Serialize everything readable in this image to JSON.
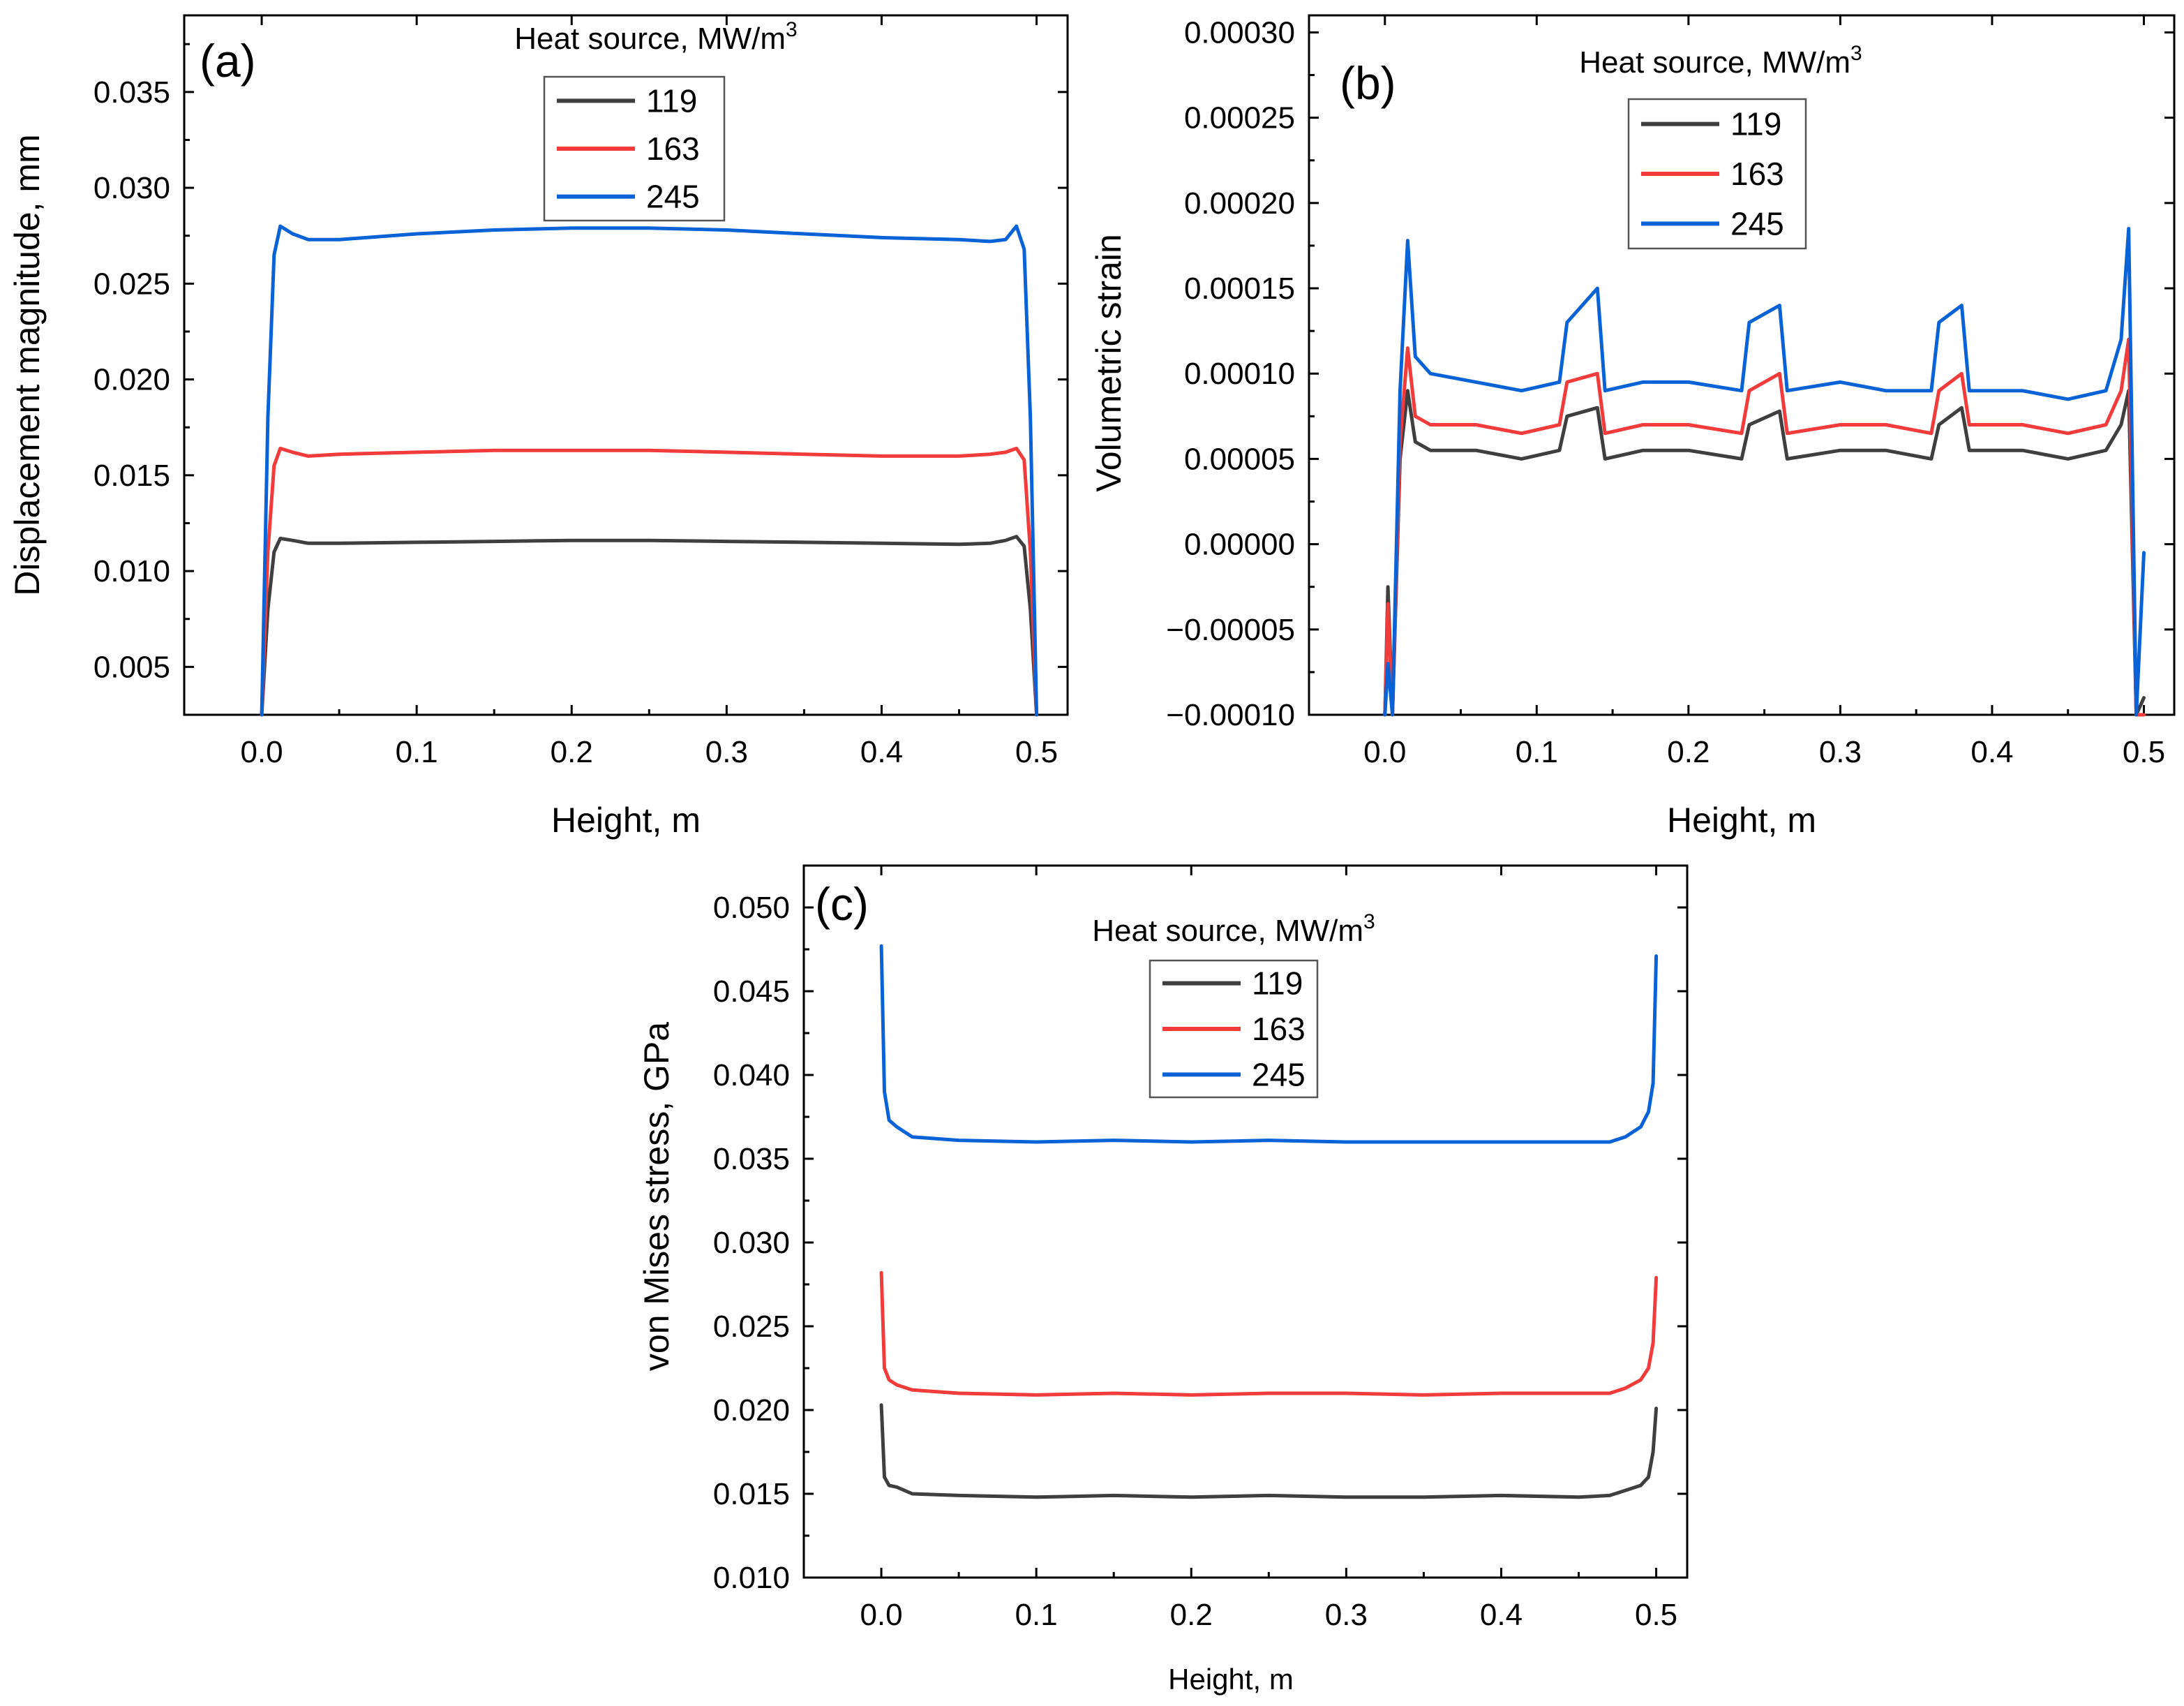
{
  "colors": {
    "s119": "#3f3f3f",
    "s163": "#f23b3b",
    "s245": "#0a63d6"
  },
  "legend": {
    "title": "Heat source, MW/m",
    "title_sup": "3",
    "entries": [
      "119",
      "163",
      "245"
    ]
  },
  "chart_data": [
    {
      "panel": "(a)",
      "type": "line",
      "xlabel": "Height, m",
      "ylabel": "Displacement magnitude, mm",
      "xlim": [
        -0.05,
        0.52
      ],
      "ylim": [
        0.0025,
        0.039
      ],
      "xticks": [
        "0.0",
        "0.1",
        "0.2",
        "0.3",
        "0.4",
        "0.5"
      ],
      "yticks": [
        "0.005",
        "0.010",
        "0.015",
        "0.020",
        "0.025",
        "0.030",
        "0.035"
      ],
      "series": [
        {
          "name": "119",
          "x": [
            0.0,
            0.004,
            0.008,
            0.012,
            0.02,
            0.03,
            0.05,
            0.1,
            0.15,
            0.2,
            0.25,
            0.3,
            0.35,
            0.4,
            0.45,
            0.47,
            0.48,
            0.487,
            0.492,
            0.496,
            0.5
          ],
          "values": [
            0.0025,
            0.008,
            0.011,
            0.0117,
            0.0116,
            0.01145,
            0.01145,
            0.0115,
            0.01155,
            0.0116,
            0.0116,
            0.01155,
            0.0115,
            0.01145,
            0.0114,
            0.01145,
            0.0116,
            0.0118,
            0.0113,
            0.008,
            0.0025
          ]
        },
        {
          "name": "163",
          "x": [
            0.0,
            0.004,
            0.008,
            0.012,
            0.02,
            0.03,
            0.05,
            0.1,
            0.15,
            0.2,
            0.25,
            0.3,
            0.35,
            0.4,
            0.45,
            0.47,
            0.48,
            0.487,
            0.492,
            0.496,
            0.5
          ],
          "values": [
            0.0025,
            0.011,
            0.0155,
            0.0164,
            0.0162,
            0.016,
            0.0161,
            0.0162,
            0.0163,
            0.0163,
            0.0163,
            0.0162,
            0.0161,
            0.016,
            0.016,
            0.0161,
            0.0162,
            0.0164,
            0.0158,
            0.011,
            0.0025
          ]
        },
        {
          "name": "245",
          "x": [
            0.0,
            0.004,
            0.008,
            0.012,
            0.02,
            0.03,
            0.05,
            0.1,
            0.15,
            0.2,
            0.25,
            0.3,
            0.35,
            0.4,
            0.45,
            0.47,
            0.48,
            0.487,
            0.492,
            0.496,
            0.5
          ],
          "values": [
            0.0025,
            0.018,
            0.0265,
            0.028,
            0.0276,
            0.0273,
            0.0273,
            0.0276,
            0.0278,
            0.0279,
            0.0279,
            0.0278,
            0.0276,
            0.0274,
            0.0273,
            0.0272,
            0.0273,
            0.028,
            0.0268,
            0.018,
            0.0025
          ]
        }
      ]
    },
    {
      "panel": "(b)",
      "type": "line",
      "xlabel": "Height, m",
      "ylabel": "Volumetric strain",
      "xlim": [
        -0.05,
        0.52
      ],
      "ylim": [
        -0.0001,
        0.00031
      ],
      "xticks": [
        "0.0",
        "0.1",
        "0.2",
        "0.3",
        "0.4",
        "0.5"
      ],
      "yticks": [
        "−0.00010",
        "−0.00005",
        "0.00000",
        "0.00005",
        "0.00010",
        "0.00015",
        "0.00020",
        "0.00025",
        "0.00030"
      ],
      "series": [
        {
          "name": "119",
          "x": [
            0.0,
            0.002,
            0.005,
            0.01,
            0.015,
            0.02,
            0.03,
            0.06,
            0.09,
            0.115,
            0.12,
            0.14,
            0.145,
            0.17,
            0.2,
            0.235,
            0.24,
            0.26,
            0.265,
            0.3,
            0.33,
            0.36,
            0.365,
            0.38,
            0.385,
            0.42,
            0.45,
            0.475,
            0.485,
            0.49,
            0.495,
            0.5
          ],
          "values": [
            -0.0001,
            -2.5e-05,
            -0.0001,
            5e-05,
            9e-05,
            6e-05,
            5.5e-05,
            5.5e-05,
            5e-05,
            5.5e-05,
            7.5e-05,
            8e-05,
            5e-05,
            5.5e-05,
            5.5e-05,
            5e-05,
            7e-05,
            7.8e-05,
            5e-05,
            5.5e-05,
            5.5e-05,
            5e-05,
            7e-05,
            8e-05,
            5.5e-05,
            5.5e-05,
            5e-05,
            5.5e-05,
            7e-05,
            9e-05,
            -0.0001,
            -9e-05
          ]
        },
        {
          "name": "163",
          "x": [
            0.0,
            0.002,
            0.005,
            0.01,
            0.015,
            0.02,
            0.03,
            0.06,
            0.09,
            0.115,
            0.12,
            0.14,
            0.145,
            0.17,
            0.2,
            0.235,
            0.24,
            0.26,
            0.265,
            0.3,
            0.33,
            0.36,
            0.365,
            0.38,
            0.385,
            0.42,
            0.45,
            0.475,
            0.485,
            0.49,
            0.495,
            0.5
          ],
          "values": [
            -0.0001,
            -3.5e-05,
            -0.0001,
            6e-05,
            0.000115,
            7.5e-05,
            7e-05,
            7e-05,
            6.5e-05,
            7e-05,
            9.5e-05,
            0.0001,
            6.5e-05,
            7e-05,
            7e-05,
            6.5e-05,
            9e-05,
            0.0001,
            6.5e-05,
            7e-05,
            7e-05,
            6.5e-05,
            9e-05,
            0.0001,
            7e-05,
            7e-05,
            6.5e-05,
            7e-05,
            9e-05,
            0.00012,
            -0.0001,
            -0.0001
          ]
        },
        {
          "name": "245",
          "x": [
            0.0,
            0.002,
            0.005,
            0.01,
            0.015,
            0.02,
            0.03,
            0.06,
            0.09,
            0.115,
            0.12,
            0.14,
            0.145,
            0.17,
            0.2,
            0.235,
            0.24,
            0.26,
            0.265,
            0.3,
            0.33,
            0.36,
            0.365,
            0.38,
            0.385,
            0.42,
            0.45,
            0.475,
            0.485,
            0.49,
            0.495,
            0.5
          ],
          "values": [
            -0.0001,
            -7e-05,
            -0.0001,
            9e-05,
            0.000178,
            0.00011,
            0.0001,
            9.5e-05,
            9e-05,
            9.5e-05,
            0.00013,
            0.00015,
            9e-05,
            9.5e-05,
            9.5e-05,
            9e-05,
            0.00013,
            0.00014,
            9e-05,
            9.5e-05,
            9e-05,
            9e-05,
            0.00013,
            0.00014,
            9e-05,
            9e-05,
            8.5e-05,
            9e-05,
            0.00012,
            0.000185,
            -0.0001,
            -5e-06
          ]
        }
      ]
    },
    {
      "panel": "(c)",
      "type": "line",
      "xlabel": "Height, m",
      "ylabel": "von Mises stress, GPa",
      "xlim": [
        -0.05,
        0.52
      ],
      "ylim": [
        0.01,
        0.0525
      ],
      "xticks": [
        "0.0",
        "0.1",
        "0.2",
        "0.3",
        "0.4",
        "0.5"
      ],
      "yticks": [
        "0.010",
        "0.015",
        "0.020",
        "0.025",
        "0.030",
        "0.035",
        "0.040",
        "0.045",
        "0.050"
      ],
      "series": [
        {
          "name": "119",
          "x": [
            0.0,
            0.002,
            0.005,
            0.01,
            0.02,
            0.05,
            0.1,
            0.15,
            0.2,
            0.25,
            0.3,
            0.35,
            0.4,
            0.45,
            0.47,
            0.48,
            0.49,
            0.495,
            0.498,
            0.5
          ],
          "values": [
            0.0203,
            0.016,
            0.0155,
            0.0154,
            0.015,
            0.0149,
            0.0148,
            0.0149,
            0.0148,
            0.0149,
            0.0148,
            0.0148,
            0.0149,
            0.0148,
            0.0149,
            0.0152,
            0.0155,
            0.016,
            0.0175,
            0.0201
          ]
        },
        {
          "name": "163",
          "x": [
            0.0,
            0.002,
            0.005,
            0.01,
            0.02,
            0.05,
            0.1,
            0.15,
            0.2,
            0.25,
            0.3,
            0.35,
            0.4,
            0.45,
            0.47,
            0.48,
            0.49,
            0.495,
            0.498,
            0.5
          ],
          "values": [
            0.0282,
            0.0225,
            0.0218,
            0.0215,
            0.0212,
            0.021,
            0.0209,
            0.021,
            0.0209,
            0.021,
            0.021,
            0.0209,
            0.021,
            0.021,
            0.021,
            0.0213,
            0.0218,
            0.0225,
            0.024,
            0.0279
          ]
        },
        {
          "name": "245",
          "x": [
            0.0,
            0.002,
            0.005,
            0.01,
            0.02,
            0.05,
            0.1,
            0.15,
            0.2,
            0.25,
            0.3,
            0.35,
            0.4,
            0.45,
            0.47,
            0.48,
            0.49,
            0.495,
            0.498,
            0.5
          ],
          "values": [
            0.0477,
            0.039,
            0.0373,
            0.0369,
            0.0363,
            0.0361,
            0.036,
            0.0361,
            0.036,
            0.0361,
            0.036,
            0.036,
            0.036,
            0.036,
            0.036,
            0.0363,
            0.0369,
            0.0378,
            0.0395,
            0.0471
          ]
        }
      ]
    }
  ]
}
